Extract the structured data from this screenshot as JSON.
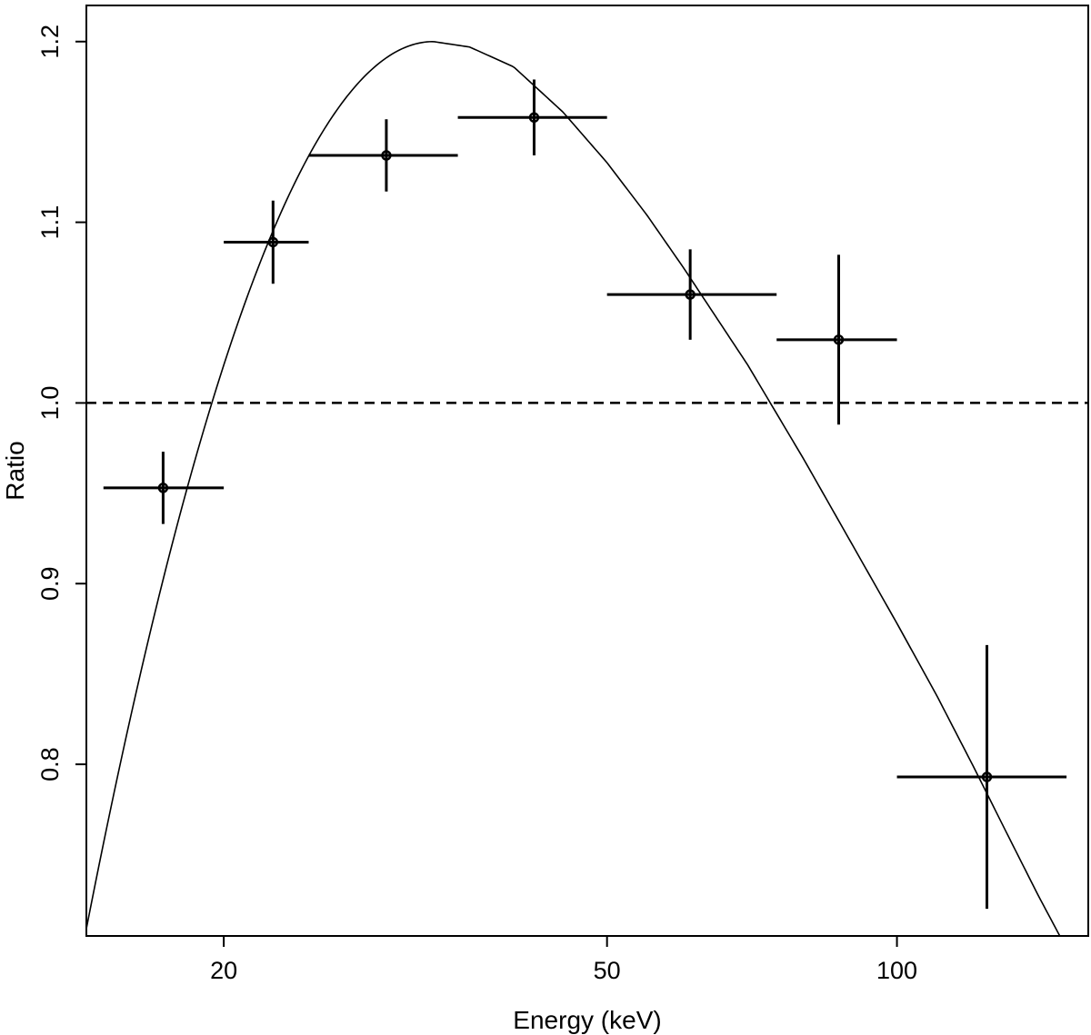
{
  "chart_data": {
    "type": "scatter",
    "title": "",
    "xlabel": "Energy (keV)",
    "ylabel": "Ratio",
    "xscale": "log",
    "xlim": [
      14.4,
      158
    ],
    "ylim": [
      0.705,
      1.22
    ],
    "xticks": [
      20,
      50,
      100
    ],
    "xtick_labels": [
      "20",
      "50",
      "100"
    ],
    "yticks": [
      0.8,
      0.9,
      1.0,
      1.1,
      1.2
    ],
    "ytick_labels": [
      "0.8",
      "0.9",
      "1.0",
      "1.1",
      "1.2"
    ],
    "reference_line": {
      "y": 1.0,
      "style": "dashed"
    },
    "series": [
      {
        "name": "data",
        "points": [
          {
            "x": 17.3,
            "x_low": 15.0,
            "x_high": 20.0,
            "y": 0.953,
            "y_err": 0.02
          },
          {
            "x": 22.5,
            "x_low": 20.0,
            "x_high": 24.5,
            "y": 1.089,
            "y_err": 0.023
          },
          {
            "x": 29.5,
            "x_low": 24.5,
            "x_high": 35.0,
            "y": 1.137,
            "y_err": 0.02
          },
          {
            "x": 42.0,
            "x_low": 35.0,
            "x_high": 50.0,
            "y": 1.158,
            "y_err": 0.021
          },
          {
            "x": 61.0,
            "x_low": 50.0,
            "x_high": 75.0,
            "y": 1.06,
            "y_err": 0.025
          },
          {
            "x": 87.0,
            "x_low": 75.0,
            "x_high": 100.0,
            "y": 1.035,
            "y_err": 0.047
          },
          {
            "x": 124.0,
            "x_low": 100.0,
            "x_high": 150.0,
            "y": 0.793,
            "y_err": 0.073
          }
        ]
      },
      {
        "name": "model",
        "style": "line",
        "peak_x": 33.0,
        "peak_y": 1.2,
        "x": [
          14.4,
          16,
          18,
          20,
          22,
          24,
          26,
          28,
          30,
          33,
          36,
          40,
          45,
          50,
          55,
          60,
          70,
          80,
          90,
          100,
          110,
          120,
          130,
          140,
          150,
          158
        ],
        "y": [
          0.709,
          0.82,
          0.934,
          1.023,
          1.088,
          1.135,
          1.166,
          1.186,
          1.196,
          1.2,
          1.197,
          1.186,
          1.161,
          1.133,
          1.104,
          1.075,
          1.021,
          0.969,
          0.921,
          0.878,
          0.838,
          0.799,
          0.762,
          0.728,
          0.698,
          0.672
        ]
      }
    ]
  }
}
